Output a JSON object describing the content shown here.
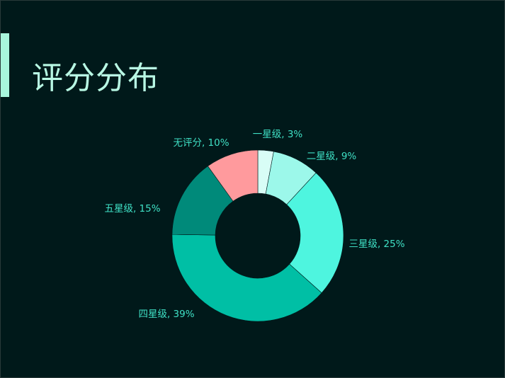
{
  "slide": {
    "title": "评分分布"
  },
  "chart_data": {
    "type": "pie",
    "variant": "donut",
    "title": "",
    "categories": [
      "一星级",
      "二星级",
      "三星级",
      "四星级",
      "五星级",
      "无评分"
    ],
    "values": [
      3,
      9,
      25,
      39,
      15,
      10
    ],
    "unit": "%",
    "labels": [
      "一星级, 3%",
      "二星级, 9%",
      "三星级, 25%",
      "四星级, 39%",
      "五星级, 15%",
      "无评分, 10%"
    ],
    "colors": [
      "#d8fdf6",
      "#9cf8ea",
      "#4ef5df",
      "#00bfa5",
      "#008a7a",
      "#ff9a9d"
    ],
    "label_color": "#3fe0c5",
    "legend": "none",
    "start_angle_deg": 0,
    "direction": "clockwise"
  }
}
